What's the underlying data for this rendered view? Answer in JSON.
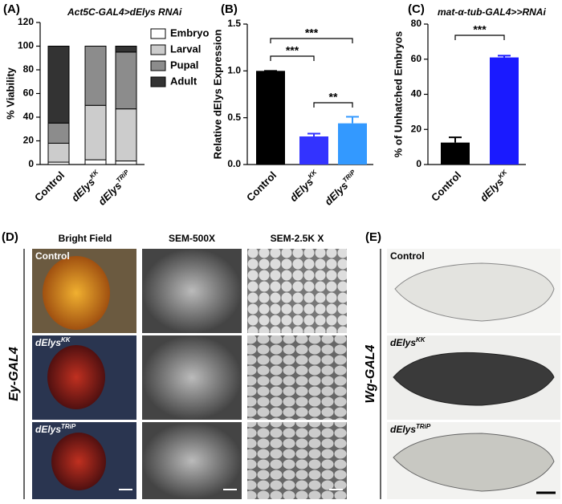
{
  "chart_data": [
    {
      "type": "stacked_bar",
      "panel_label": "(A)",
      "title": "Act5C-GAL4>dElys RNAi",
      "y_label": "% Viability",
      "categories": [
        "Control",
        "dElys",
        "dElys"
      ],
      "category_superscripts": [
        null,
        "KK",
        "TRiP"
      ],
      "series": [
        {
          "name": "Embryo",
          "color": "#ffffff",
          "values": [
            2,
            4,
            3
          ]
        },
        {
          "name": "Larval",
          "color": "#cccccc",
          "values": [
            16,
            46,
            44
          ]
        },
        {
          "name": "Pupal",
          "color": "#8c8c8c",
          "values": [
            17,
            50,
            48
          ]
        },
        {
          "name": "Adult",
          "color": "#333333",
          "values": [
            65,
            0,
            5
          ]
        }
      ],
      "ylim": [
        0,
        120
      ],
      "yticks": [
        0,
        20,
        40,
        60,
        80,
        100,
        120
      ],
      "legend": "right"
    },
    {
      "type": "bar",
      "panel_label": "(B)",
      "y_label": "Relative dElys Expression",
      "categories": [
        "Control",
        "dElys",
        "dElys"
      ],
      "category_superscripts": [
        null,
        "KK",
        "TRiP"
      ],
      "values": [
        1.0,
        0.3,
        0.44
      ],
      "errors": [
        0,
        0.03,
        0.07
      ],
      "colors": [
        "#000000",
        "#3333ff",
        "#3399ff"
      ],
      "ylim": [
        0,
        1.5
      ],
      "yticks": [
        {
          "value": 0,
          "label": "0.0"
        },
        0.5,
        {
          "value": 1,
          "label": "1.0"
        },
        1.5
      ],
      "annotations": [
        "***",
        "***",
        "**"
      ]
    },
    {
      "type": "bar",
      "panel_label": "(C)",
      "title": "mat-α-tub-GAL4>>RNAi",
      "y_label": "% of Unhatched Embryos",
      "categories": [
        "Control",
        "dElys"
      ],
      "category_superscripts": [
        null,
        "KK"
      ],
      "values": [
        12.5,
        61
      ],
      "errors": [
        3,
        1
      ],
      "colors": [
        "#000000",
        "#1a1aff"
      ],
      "ylim": [
        0,
        80
      ],
      "yticks": [
        0,
        20,
        40,
        60,
        80
      ],
      "annotations": [
        "***"
      ]
    }
  ],
  "figure": {
    "panel_d": {
      "label": "(D)",
      "columns": [
        "Bright Field",
        "SEM-500X",
        "SEM-2.5K X"
      ],
      "rows": [
        "Control",
        "dElys",
        "dElys"
      ],
      "row_superscripts": [
        null,
        "KK",
        "TRiP"
      ],
      "side_label": "Ey-GAL4"
    },
    "panel_e": {
      "label": "(E)",
      "rows": [
        "Control",
        "dElys",
        "dElys"
      ],
      "row_superscripts": [
        null,
        "KK",
        "TRiP"
      ],
      "side_label": "Wg-GAL4"
    }
  }
}
